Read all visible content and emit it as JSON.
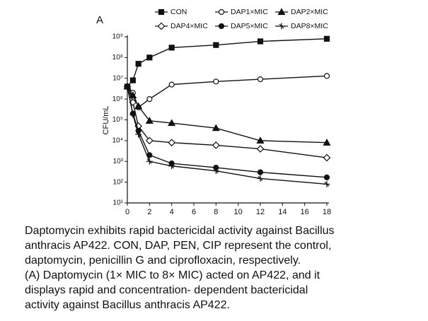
{
  "chart_data": {
    "type": "line",
    "panel_label": "A",
    "y_label": "CFU/mL",
    "log_y": true,
    "x": [
      0,
      0.5,
      1,
      2,
      4,
      8,
      12,
      18
    ],
    "xlim": [
      0,
      18
    ],
    "xticks": [
      0,
      2,
      4,
      6,
      8,
      10,
      12,
      14,
      16,
      18
    ],
    "ylim": [
      10,
      1000000000
    ],
    "yticks": [
      {
        "value": 10,
        "label": "10¹"
      },
      {
        "value": 100,
        "label": "10²"
      },
      {
        "value": 1000,
        "label": "10³"
      },
      {
        "value": 10000,
        "label": "10⁴"
      },
      {
        "value": 100000,
        "label": "10⁵"
      },
      {
        "value": 1000000,
        "label": "10⁶"
      },
      {
        "value": 10000000,
        "label": "10⁷"
      },
      {
        "value": 100000000,
        "label": "10⁸"
      },
      {
        "value": 1000000000,
        "label": "10⁹"
      }
    ],
    "series": [
      {
        "name": "CON",
        "color": "#111111",
        "marker": "square-filled",
        "values": [
          4000000,
          8000000,
          50000000,
          100000000,
          300000000,
          400000000,
          600000000,
          800000000
        ]
      },
      {
        "name": "DAP1×MIC",
        "color": "#111111",
        "marker": "circle-open",
        "values": [
          4000000,
          2000000,
          400000,
          1000000,
          5000000,
          7000000,
          9000000,
          13000000
        ]
      },
      {
        "name": "DAP2×MIC",
        "color": "#111111",
        "marker": "triangle-filled",
        "values": [
          4000000,
          1500000,
          450000,
          90000,
          70000,
          40000,
          10000,
          8000
        ]
      },
      {
        "name": "DAP4×MIC",
        "color": "#111111",
        "marker": "diamond-open",
        "values": [
          4000000,
          700000,
          50000,
          10000,
          8000,
          6000,
          4000,
          1500
        ]
      },
      {
        "name": "DAP5×MIC",
        "color": "#111111",
        "marker": "circle-filled",
        "values": [
          4000000,
          200000,
          30000,
          2000,
          800,
          500,
          300,
          170
        ]
      },
      {
        "name": "DAP8×MIC",
        "color": "#111111",
        "marker": "star-open",
        "values": [
          4000000,
          180000,
          20000,
          1000,
          600,
          350,
          150,
          80
        ]
      }
    ]
  },
  "caption": [
    "Daptomycin exhibits rapid bactericidal activity against Bacillus",
    "anthracis AP422. CON, DAP, PEN, CIP represent the control,",
    "daptomycin, penicillin G and ciprofloxacin, respectively.",
    "(A) Daptomycin (1× MIC to 8× MIC) acted on AP422, and it",
    "displays rapid and concentration- dependent bactericidal",
    "activity against Bacillus anthracis AP422."
  ]
}
